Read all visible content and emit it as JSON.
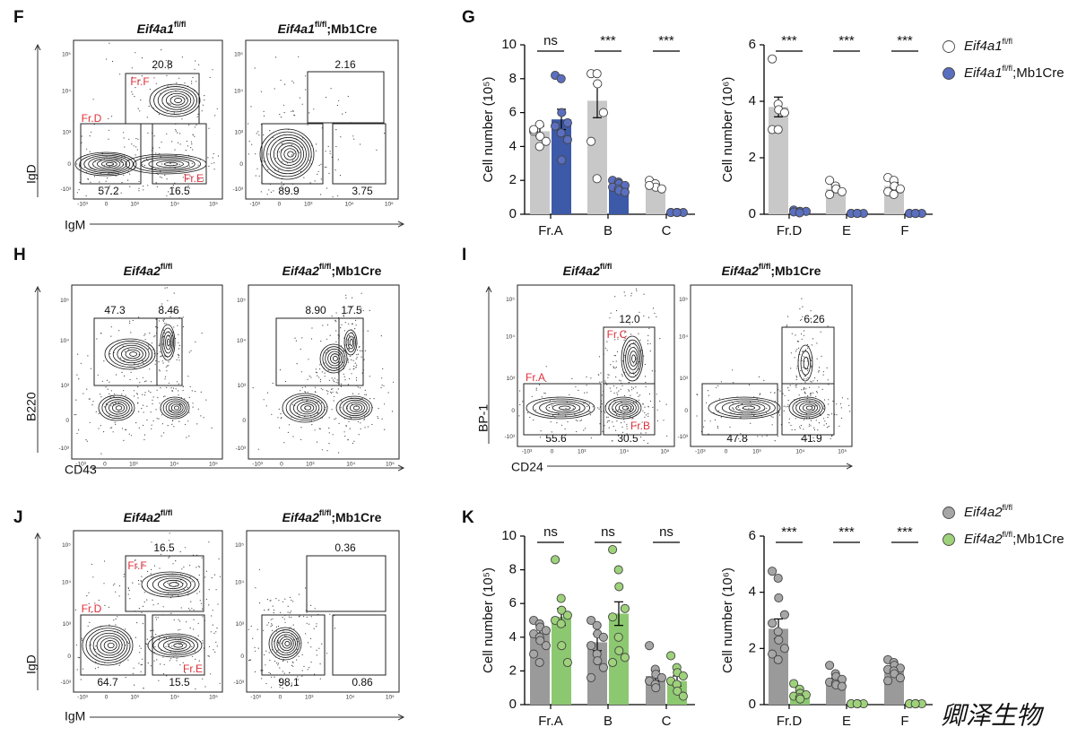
{
  "flow_panels": [
    {
      "label": "F",
      "y_axis": "IgD",
      "x_axis": "IgM",
      "plots": [
        {
          "gene": "Eif4a1",
          "sup": "fl/fl",
          "gates": [
            {
              "value": "20.8",
              "name": "Fr.F"
            },
            {
              "value": "57.2",
              "name": "Fr.D"
            },
            {
              "value": "16.5",
              "name": "Fr.E"
            }
          ]
        },
        {
          "gene": "Eif4a1",
          "sup": "fl/fl",
          "suffix": ";Mb1Cre",
          "gates": [
            {
              "value": "2.16"
            },
            {
              "value": "89.9"
            },
            {
              "value": "3.75"
            }
          ]
        }
      ]
    },
    {
      "label": "H",
      "y_axis": "B220",
      "x_axis": "CD43",
      "plots": [
        {
          "gene": "Eif4a2",
          "sup": "fl/fl",
          "gates": [
            {
              "value": "47.3"
            },
            {
              "value": "8.46"
            }
          ]
        },
        {
          "gene": "Eif4a2",
          "sup": "fl/fl",
          "suffix": ";Mb1Cre",
          "gates": [
            {
              "value": "8.90"
            },
            {
              "value": "17.5"
            }
          ]
        }
      ]
    },
    {
      "label": "I",
      "y_axis": "BP-1",
      "x_axis": "CD24",
      "plots": [
        {
          "gene": "Eif4a2",
          "sup": "fl/fl",
          "gates": [
            {
              "value": "12.0",
              "name": "Fr.C"
            },
            {
              "value": "55.6",
              "name": "Fr.A"
            },
            {
              "value": "30.5",
              "name": "Fr.B"
            }
          ]
        },
        {
          "gene": "Eif4a2",
          "sup": "fl/fl",
          "suffix": ";Mb1Cre",
          "gates": [
            {
              "value": "6.26"
            },
            {
              "value": "47.8"
            },
            {
              "value": "41.9"
            }
          ]
        }
      ]
    },
    {
      "label": "J",
      "y_axis": "IgD",
      "x_axis": "IgM",
      "plots": [
        {
          "gene": "Eif4a2",
          "sup": "fl/fl",
          "gates": [
            {
              "value": "16.5",
              "name": "Fr.F"
            },
            {
              "value": "64.7",
              "name": "Fr.D"
            },
            {
              "value": "15.5",
              "name": "Fr.E"
            }
          ]
        },
        {
          "gene": "Eif4a2",
          "sup": "fl/fl",
          "suffix": ";Mb1Cre",
          "gates": [
            {
              "value": "0.36"
            },
            {
              "value": "98.1"
            },
            {
              "value": "0.86"
            }
          ]
        }
      ]
    }
  ],
  "flow_ticks": [
    "-10³",
    "0",
    "10³",
    "10⁴",
    "10⁵"
  ],
  "bar_panel_labels": [
    "G",
    "K"
  ],
  "chart_data": [
    {
      "type": "bar",
      "y_label": "Cell number (10⁵)",
      "categories": [
        "Fr.A",
        "B",
        "C"
      ],
      "ylim": [
        0,
        10
      ],
      "yticks": [
        0,
        2,
        4,
        6,
        8,
        10
      ],
      "significance": [
        "ns",
        "***",
        "***"
      ],
      "series": [
        {
          "name": "Eif4a1",
          "name_sup": "fl/fl",
          "color": "#c8c8c8",
          "point_color": "#ffffff",
          "values": [
            4.9,
            6.7,
            1.7
          ],
          "errors": [
            0.3,
            1.0,
            0.1
          ],
          "points": [
            [
              4.9,
              5.3,
              4.6,
              4.3,
              5.0,
              4.0
            ],
            [
              8.3,
              8.3,
              7.7,
              6.0,
              4.3,
              2.1
            ],
            [
              2.0,
              1.8,
              1.6,
              1.5,
              1.7
            ]
          ]
        },
        {
          "name": "Eif4a1",
          "name_sup": "fl/fl",
          "name_suffix": ";Mb1Cre",
          "color": "#3d5aa8",
          "point_color": "#5b6fc0",
          "values": [
            5.6,
            1.7,
            0.1
          ],
          "errors": [
            0.6,
            0.1,
            0.02
          ],
          "points": [
            [
              8.2,
              8.0,
              6.0,
              5.4,
              5.2,
              4.8,
              3.2,
              4.4
            ],
            [
              2.0,
              1.9,
              1.8,
              1.7,
              1.6,
              1.5,
              1.4,
              1.3
            ],
            [
              0.1,
              0.1,
              0.1,
              0.1,
              0.1,
              0.1
            ]
          ]
        }
      ]
    },
    {
      "type": "bar",
      "y_label": "Cell number (10⁶)",
      "categories": [
        "Fr.D",
        "E",
        "F"
      ],
      "ylim": [
        0,
        6
      ],
      "yticks": [
        0,
        2,
        4,
        6
      ],
      "significance": [
        "***",
        "***",
        "***"
      ],
      "series": [
        {
          "name": "Eif4a1",
          "name_sup": "fl/fl",
          "color": "#c8c8c8",
          "point_color": "#ffffff",
          "values": [
            3.8,
            0.9,
            1.0
          ],
          "errors": [
            0.35,
            0.1,
            0.12
          ],
          "points": [
            [
              5.5,
              3.9,
              3.7,
              3.6,
              3.0,
              3.0
            ],
            [
              1.2,
              1.0,
              0.9,
              0.8,
              0.7
            ],
            [
              1.3,
              1.2,
              1.0,
              0.9,
              0.8,
              0.7
            ]
          ]
        },
        {
          "name": "Eif4a1",
          "name_sup": "fl/fl",
          "name_suffix": ";Mb1Cre",
          "color": "#3d5aa8",
          "point_color": "#5b6fc0",
          "values": [
            0.1,
            0.03,
            0.03
          ],
          "errors": [
            0.02,
            0.01,
            0.01
          ],
          "points": [
            [
              0.15,
              0.1,
              0.1,
              0.1,
              0.08,
              0.05
            ],
            [
              0.03,
              0.03,
              0.03,
              0.03,
              0.03,
              0.03
            ],
            [
              0.03,
              0.03,
              0.03,
              0.03,
              0.03,
              0.03
            ]
          ]
        }
      ]
    },
    {
      "type": "bar",
      "y_label": "Cell number (10⁵)",
      "categories": [
        "Fr.A",
        "B",
        "C"
      ],
      "ylim": [
        0,
        10
      ],
      "yticks": [
        0,
        2,
        4,
        6,
        8,
        10
      ],
      "significance": [
        "ns",
        "ns",
        "ns"
      ],
      "series": [
        {
          "name": "Eif4a2",
          "name_sup": "fl/fl",
          "color": "#9a9a9a",
          "point_color": "#a6a6a6",
          "values": [
            4.3,
            3.7,
            1.7
          ],
          "errors": [
            0.4,
            0.5,
            0.3
          ],
          "points": [
            [
              5.0,
              4.8,
              4.6,
              4.4,
              4.2,
              4.0,
              3.8,
              3.5,
              3.0,
              2.5
            ],
            [
              5.0,
              4.7,
              4.2,
              4.0,
              3.5,
              3.0,
              2.6,
              2.2,
              1.6
            ],
            [
              3.5,
              2.1,
              1.8,
              1.6,
              1.4,
              1.2,
              1.0
            ]
          ]
        },
        {
          "name": "Eif4a2",
          "name_sup": "fl/fl",
          "name_suffix": ";Mb1Cre",
          "color": "#8cc870",
          "point_color": "#9ed27a",
          "values": [
            5.2,
            5.4,
            1.4
          ],
          "errors": [
            0.5,
            0.7,
            0.3
          ],
          "points": [
            [
              8.6,
              6.3,
              5.6,
              5.3,
              5.0,
              4.8,
              3.5,
              2.5
            ],
            [
              9.2,
              8.0,
              7.0,
              5.7,
              5.2,
              4.0,
              3.2,
              2.8,
              2.5
            ],
            [
              2.9,
              2.2,
              1.9,
              1.7,
              1.4,
              1.2,
              0.8,
              0.5
            ]
          ]
        }
      ]
    },
    {
      "type": "bar",
      "y_label": "Cell number (10⁶)",
      "categories": [
        "Fr.D",
        "E",
        "F"
      ],
      "ylim": [
        0,
        6
      ],
      "yticks": [
        0,
        2,
        4,
        6
      ],
      "significance": [
        "***",
        "***",
        "***"
      ],
      "series": [
        {
          "name": "Eif4a2",
          "name_sup": "fl/fl",
          "color": "#9a9a9a",
          "point_color": "#a6a6a6",
          "values": [
            2.7,
            0.85,
            1.25
          ],
          "errors": [
            0.35,
            0.1,
            0.1
          ],
          "points": [
            [
              4.75,
              4.5,
              3.8,
              3.2,
              2.9,
              2.6,
              2.3,
              2.0,
              1.8,
              1.6
            ],
            [
              1.4,
              1.1,
              1.0,
              0.9,
              0.8,
              0.75,
              0.7,
              0.65
            ],
            [
              1.6,
              1.5,
              1.4,
              1.3,
              1.25,
              1.2,
              1.1,
              0.95,
              0.85
            ]
          ]
        },
        {
          "name": "Eif4a2",
          "name_sup": "fl/fl",
          "name_suffix": ";Mb1Cre",
          "color": "#8cc870",
          "point_color": "#9ed27a",
          "values": [
            0.4,
            0.03,
            0.03
          ],
          "errors": [
            0.08,
            0.01,
            0.01
          ],
          "points": [
            [
              0.75,
              0.55,
              0.4,
              0.35,
              0.3,
              0.25,
              0.2
            ],
            [
              0.03,
              0.03,
              0.03,
              0.03,
              0.03,
              0.03
            ],
            [
              0.03,
              0.03,
              0.03,
              0.03,
              0.03,
              0.03
            ]
          ]
        }
      ]
    }
  ],
  "watermark": "卿泽生物"
}
